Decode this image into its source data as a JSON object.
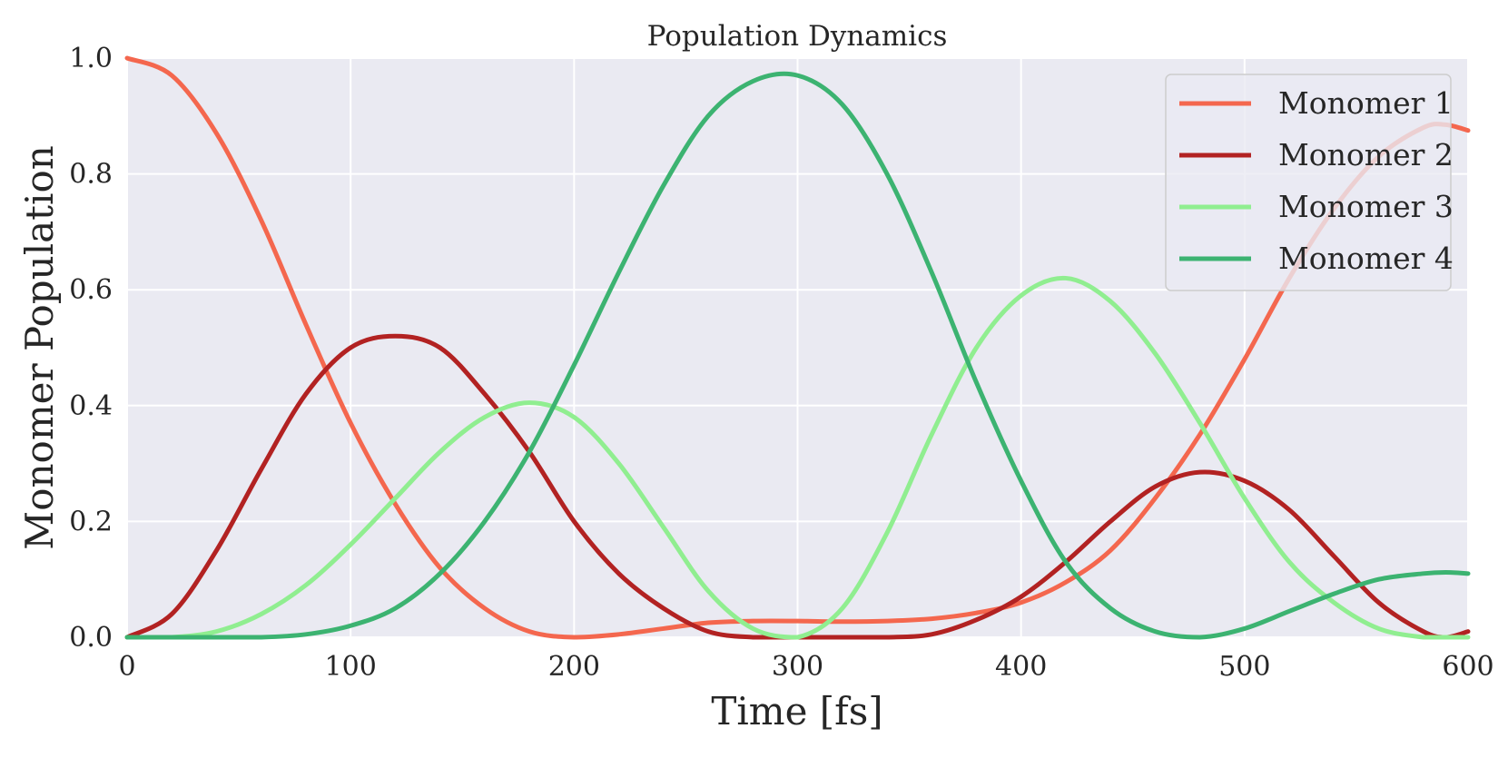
{
  "chart_data": {
    "type": "line",
    "title": "Population Dynamics",
    "xlabel": "Time [fs]",
    "ylabel": "Monomer Population",
    "xlim": [
      0,
      600
    ],
    "ylim": [
      0.0,
      1.0
    ],
    "xticks": [
      0,
      100,
      200,
      300,
      400,
      500,
      600
    ],
    "xtick_labels": [
      "0",
      "100",
      "200",
      "300",
      "400",
      "500",
      "600"
    ],
    "yticks": [
      0.0,
      0.2,
      0.4,
      0.6,
      0.8,
      1.0
    ],
    "ytick_labels": [
      "0.0",
      "0.2",
      "0.4",
      "0.6",
      "0.8",
      "1.0"
    ],
    "grid": true,
    "legend_position": "top-right",
    "x": [
      0,
      20,
      40,
      60,
      80,
      100,
      120,
      140,
      160,
      180,
      200,
      220,
      240,
      260,
      280,
      300,
      320,
      340,
      360,
      380,
      400,
      420,
      440,
      460,
      480,
      500,
      520,
      540,
      560,
      580,
      590,
      600
    ],
    "series": [
      {
        "name": "Monomer 1",
        "color": "#f4674e",
        "values": [
          1.0,
          0.97,
          0.87,
          0.72,
          0.54,
          0.37,
          0.23,
          0.12,
          0.05,
          0.01,
          0.0,
          0.005,
          0.015,
          0.025,
          0.028,
          0.028,
          0.027,
          0.028,
          0.032,
          0.042,
          0.06,
          0.095,
          0.15,
          0.24,
          0.35,
          0.48,
          0.62,
          0.74,
          0.83,
          0.88,
          0.885,
          0.875
        ]
      },
      {
        "name": "Monomer 2",
        "color": "#b22222",
        "values": [
          0.0,
          0.04,
          0.15,
          0.29,
          0.42,
          0.5,
          0.52,
          0.5,
          0.42,
          0.32,
          0.2,
          0.11,
          0.05,
          0.01,
          0.0,
          0.0,
          0.0,
          0.0,
          0.005,
          0.03,
          0.07,
          0.13,
          0.2,
          0.26,
          0.285,
          0.27,
          0.22,
          0.14,
          0.06,
          0.01,
          0.0,
          0.01
        ]
      },
      {
        "name": "Monomer 3",
        "color": "#90ee90",
        "values": [
          0.0,
          0.0,
          0.01,
          0.04,
          0.09,
          0.16,
          0.24,
          0.32,
          0.38,
          0.405,
          0.38,
          0.3,
          0.19,
          0.08,
          0.015,
          0.0,
          0.05,
          0.18,
          0.35,
          0.5,
          0.59,
          0.62,
          0.58,
          0.49,
          0.37,
          0.24,
          0.13,
          0.06,
          0.015,
          0.0,
          0.0,
          0.0
        ]
      },
      {
        "name": "Monomer 4",
        "color": "#3cb371",
        "values": [
          0.0,
          0.0,
          0.0,
          0.0,
          0.005,
          0.02,
          0.05,
          0.11,
          0.2,
          0.32,
          0.47,
          0.63,
          0.78,
          0.9,
          0.96,
          0.97,
          0.92,
          0.8,
          0.63,
          0.44,
          0.27,
          0.13,
          0.05,
          0.01,
          0.0,
          0.015,
          0.045,
          0.075,
          0.1,
          0.11,
          0.112,
          0.11
        ]
      }
    ]
  }
}
